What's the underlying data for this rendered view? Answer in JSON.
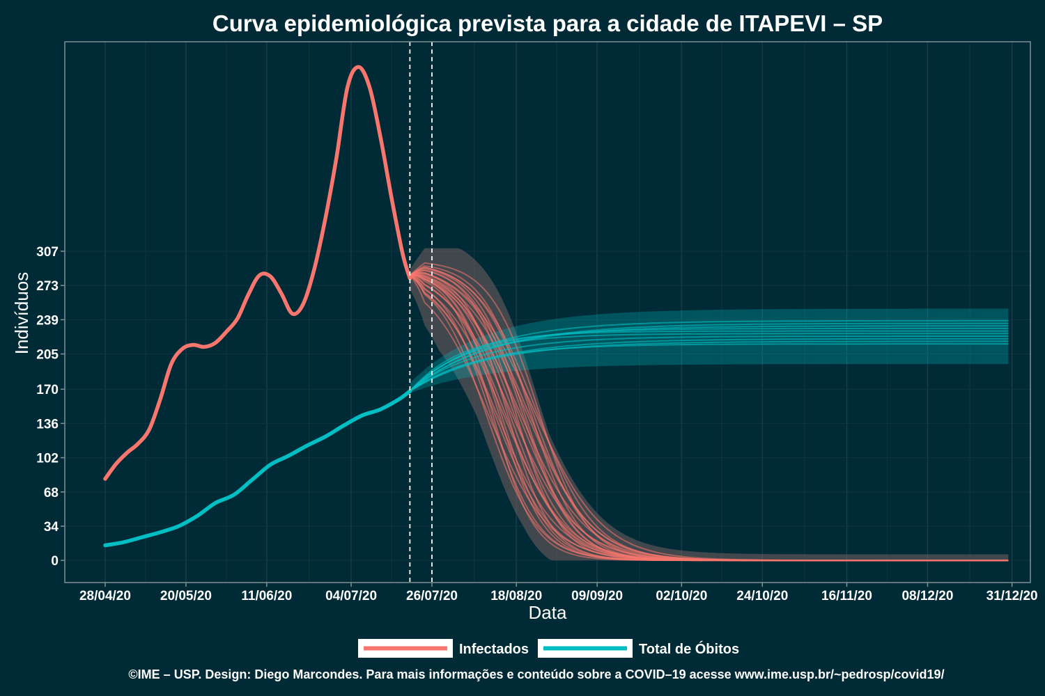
{
  "chart_data": {
    "type": "line",
    "title": "Curva epidemiológica prevista para a cidade de ITAPEVI – SP",
    "xlabel": "Data",
    "ylabel": "Indivíduos",
    "x_ticks": [
      "28/04/20",
      "20/05/20",
      "11/06/20",
      "04/07/20",
      "26/07/20",
      "18/08/20",
      "09/09/20",
      "02/10/20",
      "24/10/20",
      "16/11/20",
      "08/12/20",
      "31/12/20"
    ],
    "x_range": [
      "2020-04-17",
      "2021-01-05"
    ],
    "y_ticks": [
      0,
      34,
      68,
      102,
      136,
      170,
      205,
      239,
      273,
      307
    ],
    "y_range": [
      -22,
      515
    ],
    "grid": true,
    "legend_position": "bottom",
    "vertical_markers": [
      "2020-07-20",
      "2020-07-26"
    ],
    "series": [
      {
        "name": "Infectados",
        "color": "#f8766d",
        "kind": "observed",
        "points": [
          [
            "2020-04-28",
            81
          ],
          [
            "2020-05-01",
            96
          ],
          [
            "2020-05-04",
            107
          ],
          [
            "2020-05-07",
            116
          ],
          [
            "2020-05-10",
            130
          ],
          [
            "2020-05-13",
            160
          ],
          [
            "2020-05-16",
            195
          ],
          [
            "2020-05-19",
            210
          ],
          [
            "2020-05-22",
            214
          ],
          [
            "2020-05-25",
            212
          ],
          [
            "2020-05-28",
            216
          ],
          [
            "2020-05-31",
            227
          ],
          [
            "2020-06-03",
            240
          ],
          [
            "2020-06-06",
            264
          ],
          [
            "2020-06-09",
            283
          ],
          [
            "2020-06-12",
            282
          ],
          [
            "2020-06-15",
            265
          ],
          [
            "2020-06-18",
            245
          ],
          [
            "2020-06-21",
            255
          ],
          [
            "2020-06-24",
            290
          ],
          [
            "2020-06-27",
            340
          ],
          [
            "2020-06-30",
            400
          ],
          [
            "2020-07-03",
            470
          ],
          [
            "2020-07-06",
            490
          ],
          [
            "2020-07-09",
            470
          ],
          [
            "2020-07-12",
            420
          ],
          [
            "2020-07-15",
            360
          ],
          [
            "2020-07-18",
            305
          ],
          [
            "2020-07-20",
            280
          ]
        ],
        "projection": {
          "start": "2020-07-20",
          "start_value": 283,
          "hump_value": 290,
          "midpoint_day": "2020-08-17",
          "midpoint_spread_days": 8,
          "end_value": 0,
          "end_date": "2020-12-30",
          "band_min": 165,
          "band_max": 310
        }
      },
      {
        "name": "Total de Óbitos",
        "color": "#00bfc4",
        "kind": "observed",
        "points": [
          [
            "2020-04-28",
            15
          ],
          [
            "2020-05-03",
            18
          ],
          [
            "2020-05-08",
            23
          ],
          [
            "2020-05-13",
            28
          ],
          [
            "2020-05-18",
            34
          ],
          [
            "2020-05-23",
            44
          ],
          [
            "2020-05-28",
            57
          ],
          [
            "2020-06-02",
            65
          ],
          [
            "2020-06-07",
            80
          ],
          [
            "2020-06-12",
            95
          ],
          [
            "2020-06-17",
            104
          ],
          [
            "2020-06-22",
            114
          ],
          [
            "2020-06-27",
            123
          ],
          [
            "2020-07-02",
            134
          ],
          [
            "2020-07-07",
            144
          ],
          [
            "2020-07-12",
            150
          ],
          [
            "2020-07-17",
            160
          ],
          [
            "2020-07-20",
            168
          ]
        ],
        "projection": {
          "start": "2020-07-20",
          "start_value": 168,
          "plateau_min": 215,
          "plateau_max": 238,
          "band_min": 195,
          "band_max": 250,
          "end_date": "2020-12-30"
        }
      }
    ]
  },
  "caption": "©IME – USP. Design: Diego Marcondes. Para mais informações e conteúdo sobre a COVID–19 acesse www.ime.usp.br/~pedrosp/covid19/"
}
